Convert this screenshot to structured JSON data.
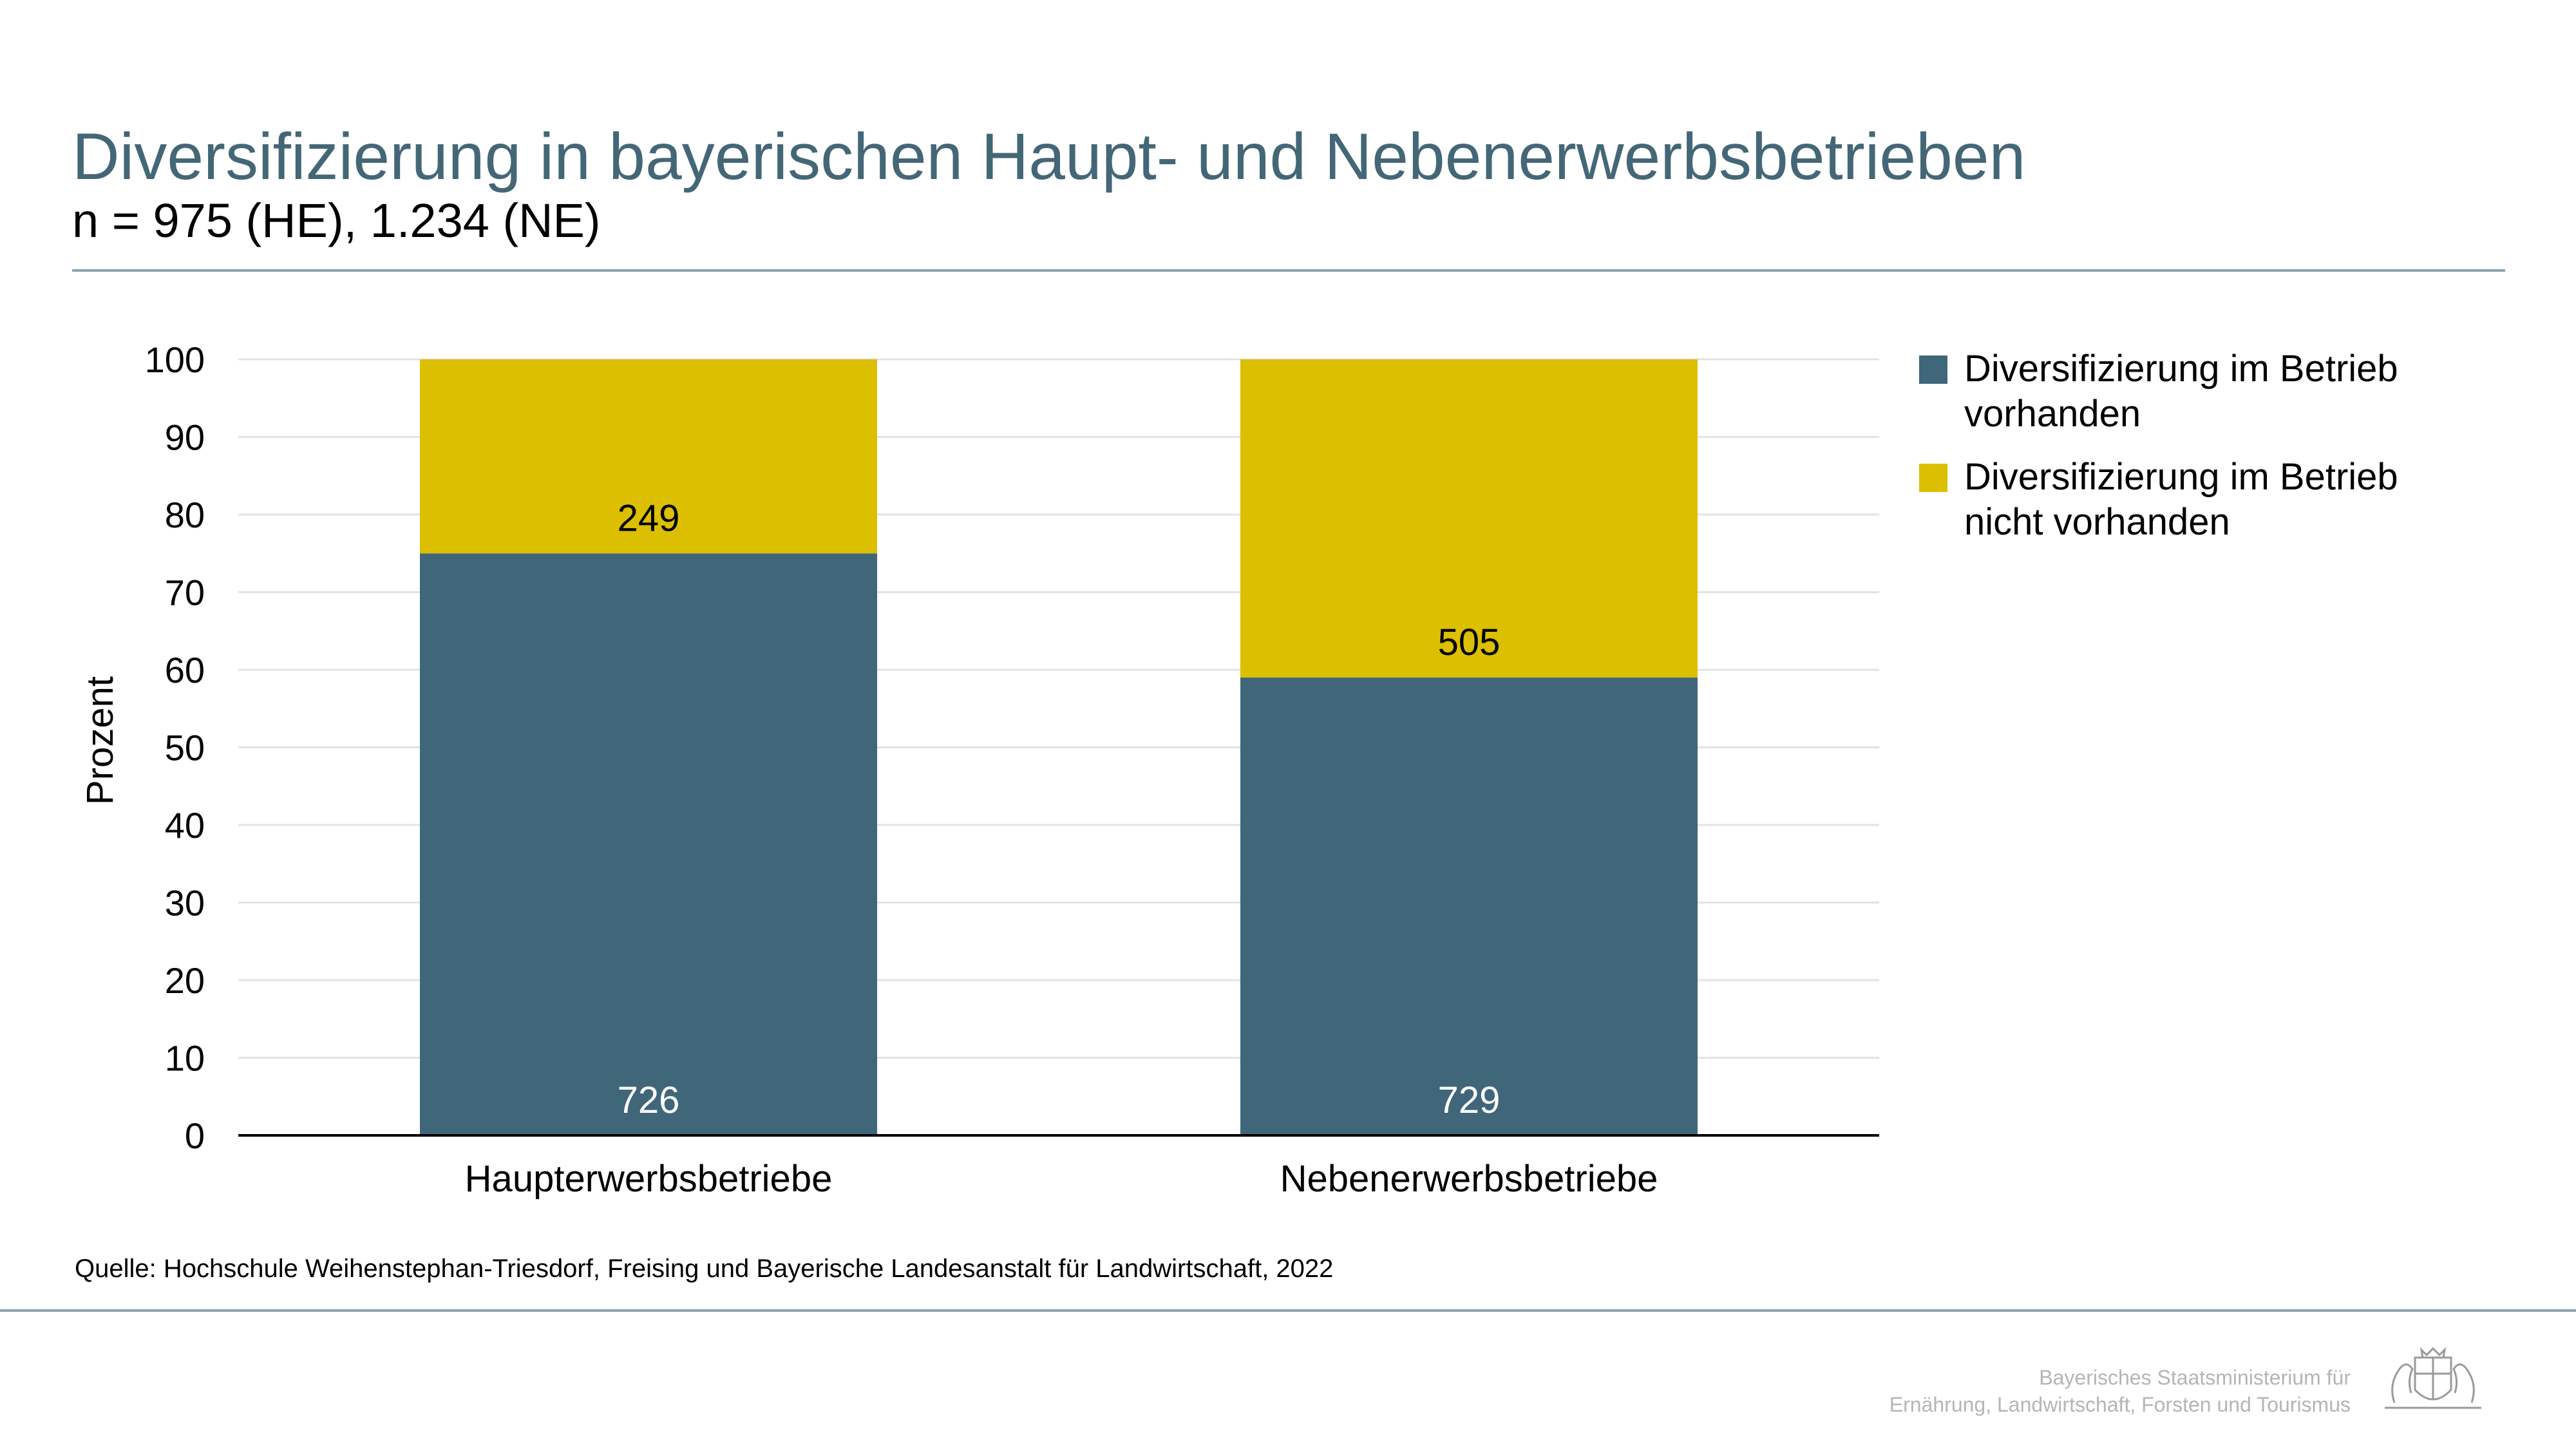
{
  "header": {
    "title": "Diversifizierung in bayerischen Haupt- und Nebenerwerbsbetrieben",
    "subtitle": "n = 975 (HE), 1.234 (NE)"
  },
  "colors": {
    "title": "#446777",
    "series_present": "#40667a",
    "series_absent": "#dcbf00",
    "rule": "#8aa4b0"
  },
  "chart_data": {
    "type": "bar",
    "stacked": true,
    "categories": [
      "Haupterwerbsbetriebe",
      "Nebenerwerbsbetriebe"
    ],
    "ylabel": "Prozent",
    "ylim": [
      0,
      100
    ],
    "yticks": [
      0,
      10,
      20,
      30,
      40,
      50,
      60,
      70,
      80,
      90,
      100
    ],
    "grid": true,
    "legend_position": "right",
    "series": [
      {
        "name": "Diversifizierung im Betrieb vorhanden",
        "color": "#40667a",
        "values": [
          75,
          59
        ],
        "labels": [
          "726",
          "729"
        ]
      },
      {
        "name": "Diversifizierung im Betrieb nicht vorhanden",
        "color": "#dcbf00",
        "values": [
          25,
          41
        ],
        "labels": [
          "249",
          "505"
        ]
      }
    ]
  },
  "footer": {
    "source": "Quelle: Hochschule Weihenstephan-Triesdorf, Freising und Bayerische Landesanstalt für Landwirtschaft, 2022",
    "ministry_line1": "Bayerisches Staatsministerium für",
    "ministry_line2": "Ernährung, Landwirtschaft, Forsten und Tourismus",
    "logo_icon": "coat-of-arms-icon"
  }
}
